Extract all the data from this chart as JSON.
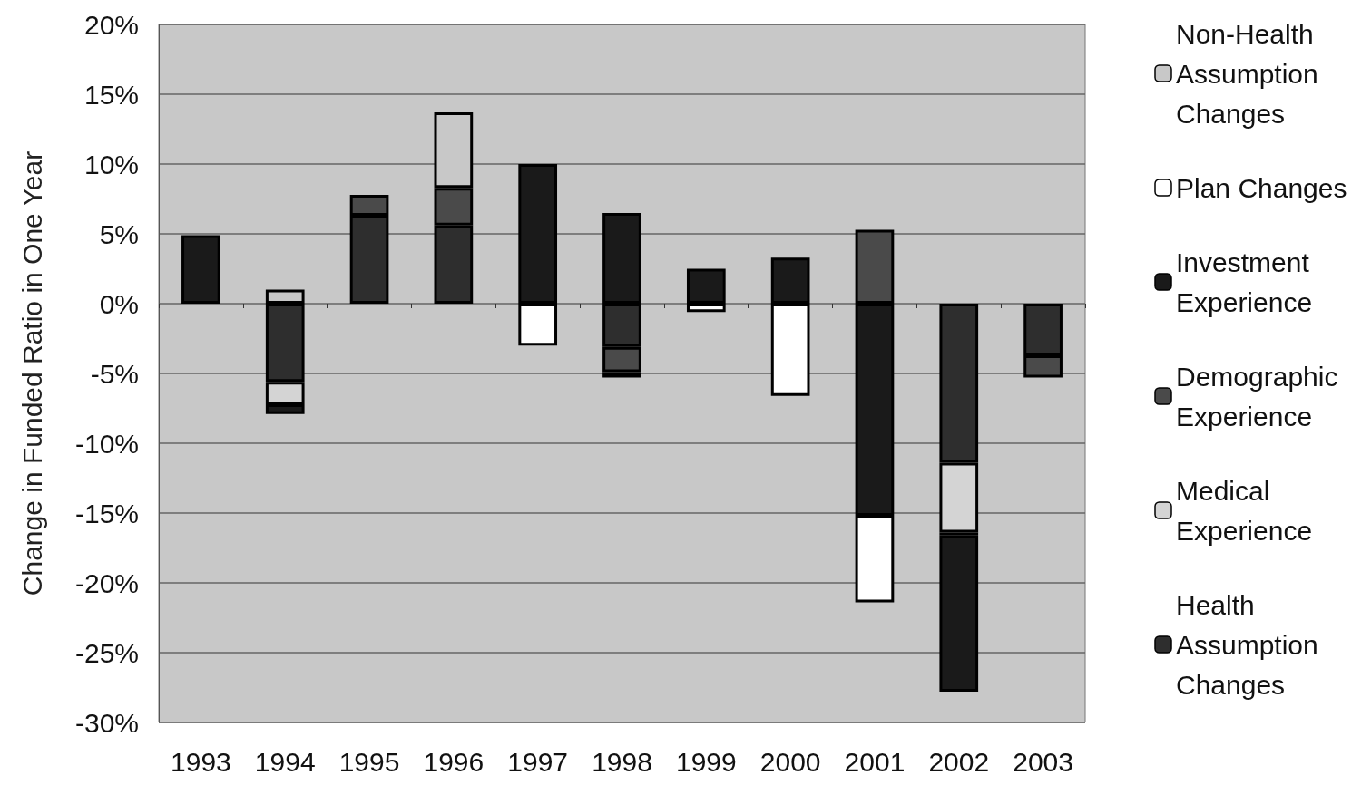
{
  "chart_data": {
    "type": "bar",
    "stacked": true,
    "ylabel": "Change in Funded Ratio in One Year",
    "categories": [
      "1993",
      "1994",
      "1995",
      "1996",
      "1997",
      "1998",
      "1999",
      "2000",
      "2001",
      "2002",
      "2003"
    ],
    "series": [
      {
        "name": "Health Assumption Changes",
        "color": "#2e2e2e",
        "values": [
          null,
          -5.6,
          6.3,
          5.6,
          null,
          -3.1,
          null,
          null,
          null,
          -11.4,
          -3.7
        ]
      },
      {
        "name": "Medical Experience",
        "color": "#d4d4d4",
        "values": [
          null,
          -1.6,
          null,
          null,
          null,
          null,
          null,
          null,
          null,
          -5.0,
          null
        ]
      },
      {
        "name": "Demographic Experience",
        "color": "#4a4a4a",
        "values": [
          null,
          null,
          1.5,
          2.7,
          null,
          -1.8,
          null,
          null,
          5.3,
          -0.2,
          -1.6
        ]
      },
      {
        "name": "Investment Experience",
        "color": "#1a1a1a",
        "values": [
          4.9,
          -0.7,
          null,
          null,
          10.0,
          6.5,
          2.5,
          3.3,
          -15.2,
          -11.2,
          null
        ]
      },
      {
        "name": "Plan Changes",
        "color": "#ffffff",
        "values": [
          null,
          null,
          null,
          null,
          -3.0,
          -0.4,
          -0.6,
          -6.6,
          -6.2,
          null,
          null
        ]
      },
      {
        "name": "Non-Health Assumption Changes",
        "color": "#c8c8c8",
        "values": [
          null,
          1.0,
          null,
          5.4,
          null,
          null,
          null,
          null,
          null,
          null,
          null
        ]
      }
    ],
    "ylim": [
      -30,
      20
    ],
    "yticks": [
      {
        "value": -30,
        "label": "-30%"
      },
      {
        "value": -25,
        "label": "-25%"
      },
      {
        "value": -20,
        "label": "-20%"
      },
      {
        "value": -15,
        "label": "-15%"
      },
      {
        "value": -10,
        "label": "-10%"
      },
      {
        "value": -5,
        "label": "-5%"
      },
      {
        "value": 0,
        "label": "0%"
      },
      {
        "value": 5,
        "label": "5%"
      },
      {
        "value": 10,
        "label": "10%"
      },
      {
        "value": 15,
        "label": "15%"
      },
      {
        "value": 20,
        "label": "20%"
      }
    ],
    "grid": "y",
    "legend": "right"
  }
}
